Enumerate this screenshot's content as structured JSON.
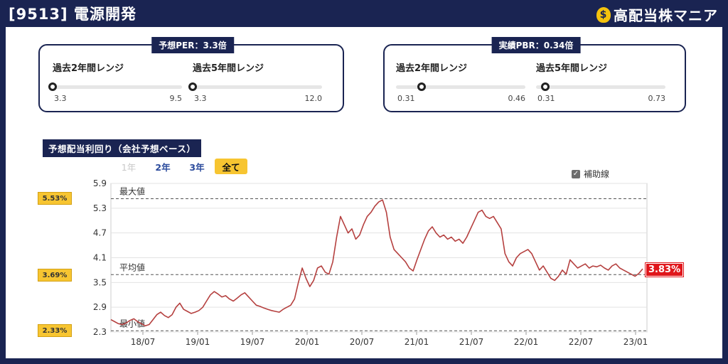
{
  "header": {
    "title": "[9513] 電源開発",
    "brand": "高配当株マニア",
    "brand_icon": "money-bag-icon"
  },
  "per_box": {
    "label": "予想PER：3.3倍",
    "ranges": [
      {
        "label": "過去2年間レンジ",
        "min": "3.3",
        "max": "9.5",
        "position": 0.0
      },
      {
        "label": "過去5年間レンジ",
        "min": "3.3",
        "max": "12.0",
        "position": 0.0
      }
    ]
  },
  "pbr_box": {
    "label": "実績PBR：0.34倍",
    "ranges": [
      {
        "label": "過去2年間レンジ",
        "min": "0.31",
        "max": "0.46",
        "position": 0.2
      },
      {
        "label": "過去5年間レンジ",
        "min": "0.31",
        "max": "0.73",
        "position": 0.07
      }
    ]
  },
  "yield_section": {
    "title": "予想配当利回り（会社予想ベース）",
    "tabs": [
      {
        "label": "1年",
        "state": "disabled"
      },
      {
        "label": "2年",
        "state": "normal"
      },
      {
        "label": "3年",
        "state": "normal"
      },
      {
        "label": "全て",
        "state": "active"
      }
    ],
    "aux_checkbox": {
      "label": "補助線",
      "checked": true
    },
    "badges": {
      "max": "5.53%",
      "avg": "3.69%",
      "min": "2.33%"
    },
    "current_value": "3.83%"
  },
  "chart_data": {
    "type": "line",
    "y_ticks": [
      "5.9",
      "5.3",
      "4.7",
      "4.1",
      "3.5",
      "2.9",
      "2.3"
    ],
    "x_ticks": [
      "18/07",
      "19/01",
      "19/07",
      "20/01",
      "20/07",
      "21/01",
      "21/07",
      "22/01",
      "22/07",
      "23/01"
    ],
    "ylim": [
      2.3,
      5.9
    ],
    "xlim": [
      "2018-04",
      "2023-04"
    ],
    "reference_lines": [
      {
        "label": "最大値",
        "value": 5.53
      },
      {
        "label": "平均値",
        "value": 3.69
      },
      {
        "label": "最小値",
        "value": 2.33
      }
    ],
    "line_color": "#b5403f",
    "grid": true,
    "series": [
      {
        "values": [
          2.6,
          2.55,
          2.5,
          2.48,
          2.52,
          2.58,
          2.62,
          2.55,
          2.5,
          2.45,
          2.48,
          2.6,
          2.72,
          2.78,
          2.7,
          2.65,
          2.72,
          2.9,
          3.0,
          2.85,
          2.8,
          2.75,
          2.78,
          2.82,
          2.9,
          3.05,
          3.2,
          3.28,
          3.22,
          3.15,
          3.18,
          3.1,
          3.05,
          3.12,
          3.2,
          3.25,
          3.15,
          3.05,
          2.95,
          2.92,
          2.88,
          2.85,
          2.82,
          2.8,
          2.78,
          2.85,
          2.9,
          2.95,
          3.1,
          3.5,
          3.85,
          3.6,
          3.4,
          3.55,
          3.85,
          3.9,
          3.75,
          3.7,
          4.0,
          4.6,
          5.1,
          4.9,
          4.7,
          4.8,
          4.55,
          4.65,
          4.9,
          5.1,
          5.2,
          5.35,
          5.45,
          5.5,
          5.2,
          4.6,
          4.3,
          4.2,
          4.1,
          4.0,
          3.85,
          3.78,
          4.05,
          4.3,
          4.55,
          4.75,
          4.85,
          4.7,
          4.6,
          4.65,
          4.55,
          4.6,
          4.5,
          4.55,
          4.45,
          4.6,
          4.8,
          5.0,
          5.2,
          5.25,
          5.1,
          5.05,
          5.1,
          4.95,
          4.8,
          4.2,
          4.0,
          3.9,
          4.1,
          4.2,
          4.25,
          4.3,
          4.2,
          4.0,
          3.8,
          3.9,
          3.75,
          3.6,
          3.55,
          3.65,
          3.8,
          3.7,
          4.05,
          3.95,
          3.85,
          3.9,
          3.95,
          3.85,
          3.9,
          3.88,
          3.92,
          3.85,
          3.8,
          3.9,
          3.95,
          3.85,
          3.8,
          3.75,
          3.7,
          3.65,
          3.72,
          3.83
        ]
      }
    ]
  }
}
